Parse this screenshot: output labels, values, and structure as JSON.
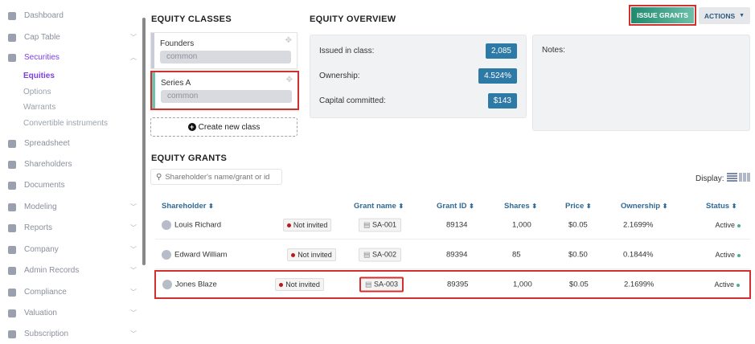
{
  "sidebar": {
    "items": [
      {
        "label": "Dashboard",
        "icon": "dashboard-icon"
      },
      {
        "label": "Cap Table",
        "icon": "pie-chart-icon",
        "chevron": "down"
      },
      {
        "label": "Securities",
        "icon": "clipboard-icon",
        "chevron": "up",
        "active": true
      },
      {
        "label": "Spreadsheet",
        "icon": "table-icon"
      },
      {
        "label": "Shareholders",
        "icon": "user-icon"
      },
      {
        "label": "Documents",
        "icon": "folder-icon"
      },
      {
        "label": "Modeling",
        "icon": "lightbulb-icon",
        "chevron": "down"
      },
      {
        "label": "Reports",
        "icon": "report-icon",
        "chevron": "down"
      },
      {
        "label": "Company",
        "icon": "building-icon",
        "chevron": "down"
      },
      {
        "label": "Admin Records",
        "icon": "records-icon",
        "chevron": "down"
      },
      {
        "label": "Compliance",
        "icon": "shield-icon",
        "chevron": "down"
      },
      {
        "label": "Valuation",
        "icon": "chart-icon",
        "chevron": "down"
      },
      {
        "label": "Subscription",
        "icon": "dollar-icon",
        "chevron": "down"
      }
    ],
    "sub_items": [
      {
        "label": "Equities",
        "active": true
      },
      {
        "label": "Options"
      },
      {
        "label": "Warrants"
      },
      {
        "label": "Convertible instruments"
      }
    ]
  },
  "classes": {
    "title": "EQUITY CLASSES",
    "items": [
      {
        "name": "Founders",
        "type": "common",
        "color": "#c9ccd6"
      },
      {
        "name": "Series A",
        "type": "common",
        "color": "#6cc4b0"
      }
    ],
    "create_label": "Create new class"
  },
  "overview": {
    "title": "EQUITY OVERVIEW",
    "rows": [
      {
        "label": "Issued in class:",
        "value": "2,085"
      },
      {
        "label": "Ownership:",
        "value": "4.524%"
      },
      {
        "label": "Capital committed:",
        "value": "$143"
      }
    ],
    "notes_label": "Notes:"
  },
  "toolbar": {
    "issue_label": "ISSUE GRANTS",
    "actions_label": "ACTIONS"
  },
  "grants": {
    "title": "EQUITY GRANTS",
    "search_placeholder": "Shareholder's name/grant or id",
    "display_label": "Display:",
    "columns": [
      "Shareholder",
      "Grant name",
      "Grant ID",
      "Shares",
      "Price",
      "Ownership",
      "Status"
    ],
    "rows": [
      {
        "shareholder": "Louis Richard",
        "invite": "Not invited",
        "grant": "SA-001",
        "id": "89134",
        "shares": "1,000",
        "price": "$0.05",
        "ownership": "2.1699%",
        "status": "Active"
      },
      {
        "shareholder": "Edward William",
        "invite": "Not invited",
        "grant": "SA-002",
        "id": "89394",
        "shares": "85",
        "price": "$0.50",
        "ownership": "0.1844%",
        "status": "Active"
      },
      {
        "shareholder": "Jones Blaze",
        "invite": "Not invited",
        "grant": "SA-003",
        "id": "89395",
        "shares": "1,000",
        "price": "$0.05",
        "ownership": "2.1699%",
        "status": "Active"
      }
    ]
  }
}
